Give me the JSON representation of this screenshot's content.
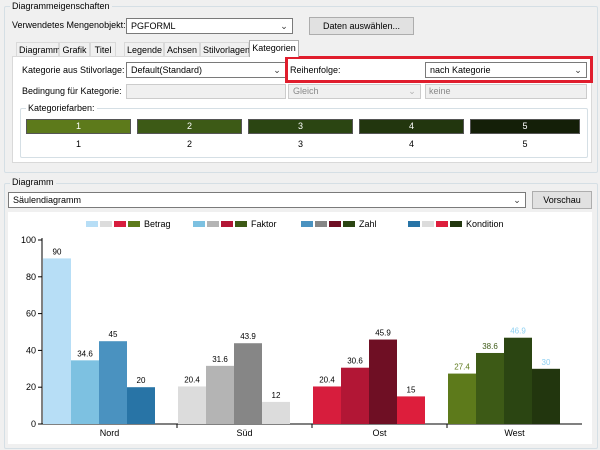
{
  "properties": {
    "group_title": "Diagrammeigenschaften",
    "quantity_object_label": "Verwendetes Mengenobjekt:",
    "quantity_object_value": "PGFORML",
    "select_data_button": "Daten auswählen..."
  },
  "tabs": [
    {
      "label": "Diagramm"
    },
    {
      "label": "Grafik"
    },
    {
      "label": "Titel"
    },
    {
      "label": "Legende"
    },
    {
      "label": "Achsen"
    },
    {
      "label": "Stilvorlagen"
    },
    {
      "label": "Kategorien"
    }
  ],
  "category_tab": {
    "category_from_style_label": "Kategorie aus Stilvorlage:",
    "category_from_style_value": "Default(Standard)",
    "order_label": "Reihenfolge:",
    "order_value": "nach Kategorie",
    "condition_label": "Bedingung für Kategorie:",
    "condition_operator": "Gleich",
    "condition_value": "keine",
    "colors_group_title": "Kategoriefarben:",
    "colors": [
      {
        "label": "1",
        "number": "1",
        "color": "#5d7a1b"
      },
      {
        "label": "2",
        "number": "2",
        "color": "#3d5a16"
      },
      {
        "label": "3",
        "number": "3",
        "color": "#2b4512"
      },
      {
        "label": "4",
        "number": "4",
        "color": "#22360e"
      },
      {
        "label": "5",
        "number": "5",
        "color": "#141f08"
      }
    ]
  },
  "diagram": {
    "group_title": "Diagramm",
    "type_value": "Säulendiagramm",
    "preview_button": "Vorschau"
  },
  "chart_data": {
    "type": "bar",
    "categories": [
      "Nord",
      "Süd",
      "Ost",
      "West"
    ],
    "series": [
      {
        "name": "Betrag",
        "values": [
          90,
          20.4,
          20.4,
          27.4
        ]
      },
      {
        "name": "Faktor",
        "values": [
          34.6,
          31.6,
          30.6,
          38.6
        ]
      },
      {
        "name": "Zahl",
        "values": [
          45,
          43.9,
          45.9,
          46.9
        ]
      },
      {
        "name": "Kondition",
        "values": [
          20,
          12,
          15,
          30
        ]
      }
    ],
    "ylim": [
      0,
      100
    ],
    "yticks": [
      "0",
      "20",
      "40",
      "60",
      "80",
      "100"
    ],
    "bar_colors": [
      [
        "#b7def6",
        "#7dc1e1",
        "#4a92c0",
        "#2874a6"
      ],
      [
        "#dcdcdc",
        "#b4b4b4",
        "#868686",
        "#dcdcdc"
      ],
      [
        "#d71d3d",
        "#b21635",
        "#6f0f24",
        "#dd1e3c"
      ],
      [
        "#5d7a1b",
        "#3d5a16",
        "#2b4512",
        "#22360e"
      ]
    ],
    "label_colors": [
      [
        "#000000",
        "#000000",
        "#000000",
        "#000000"
      ],
      [
        "#000000",
        "#000000",
        "#000000",
        "#000000"
      ],
      [
        "#000000",
        "#000000",
        "#000000",
        "#000000"
      ],
      [
        "#5d7a1b",
        "#3d5a16",
        "#8fd1f2",
        "#8fd1f2"
      ]
    ],
    "legend": [
      {
        "name": "Betrag",
        "colors": [
          "#b7def6",
          "#dcdcdc",
          "#d71d3d",
          "#5d7a1b"
        ]
      },
      {
        "name": "Faktor",
        "colors": [
          "#7dc1e1",
          "#b4b4b4",
          "#b21635",
          "#3d5a16"
        ]
      },
      {
        "name": "Zahl",
        "colors": [
          "#4a92c0",
          "#868686",
          "#6f0f24",
          "#2b4512"
        ]
      },
      {
        "name": "Kondition",
        "colors": [
          "#2874a6",
          "#dcdcdc",
          "#dd1e3c",
          "#22360e"
        ]
      }
    ],
    "grid": false,
    "legend_position": "top"
  }
}
